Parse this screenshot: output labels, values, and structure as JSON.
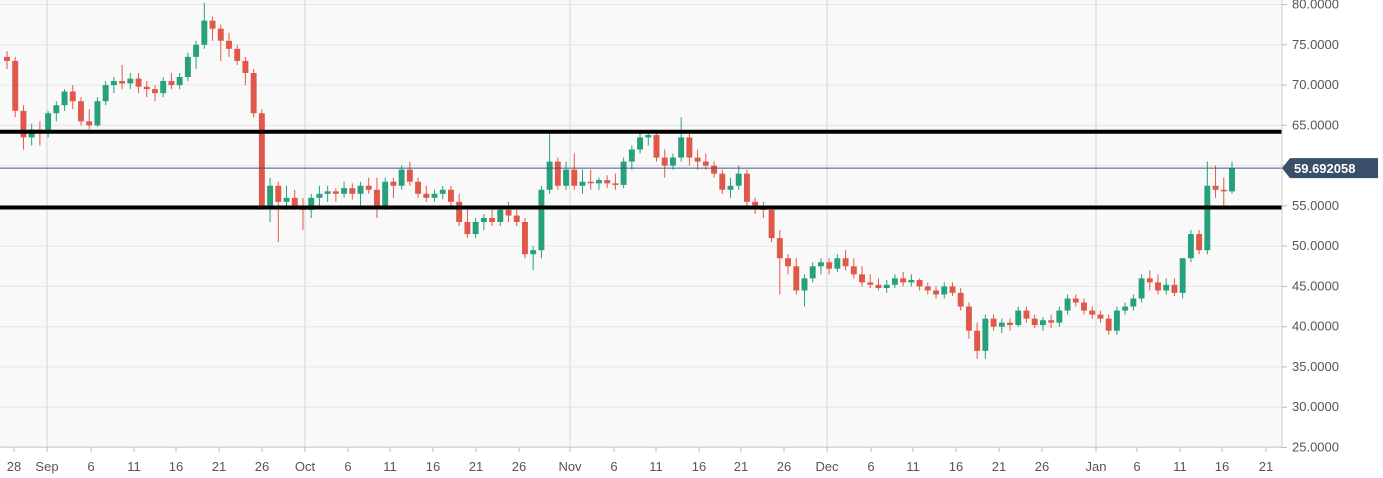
{
  "chart_data": {
    "type": "candlestick",
    "title": "",
    "xlabel": "",
    "ylabel": "",
    "ylim": [
      25,
      80.5
    ],
    "y_ticks": [
      "25.0000",
      "30.0000",
      "35.0000",
      "40.0000",
      "45.0000",
      "50.0000",
      "55.0000",
      "60.0000",
      "65.0000",
      "70.0000",
      "75.0000",
      "80.0000"
    ],
    "x_ticks": [
      "28",
      "Sep",
      "6",
      "11",
      "16",
      "21",
      "26",
      "Oct",
      "6",
      "11",
      "16",
      "21",
      "26",
      "Nov",
      "6",
      "11",
      "16",
      "21",
      "26",
      "Dec",
      "6",
      "11",
      "16",
      "21",
      "26",
      "Jan",
      "6",
      "11",
      "16",
      "21"
    ],
    "current_price": "59.692058",
    "current_value": 59.69,
    "horizontal_levels": [
      64.2,
      54.8
    ],
    "colors": {
      "up": "#26a17b",
      "down": "#e0584a",
      "level": "#000000",
      "price_line": "#3d5a80",
      "price_badge": "#3a4f6a",
      "grid": "#e6e6e6",
      "background": "#f9f9f9"
    },
    "candles": [
      [
        73.5,
        74.2,
        72.0,
        73.0
      ],
      [
        73.0,
        73.5,
        66.0,
        66.8
      ],
      [
        66.8,
        67.5,
        62.0,
        63.5
      ],
      [
        63.5,
        65.2,
        62.5,
        64.5
      ],
      [
        64.5,
        65.5,
        62.5,
        64.0
      ],
      [
        64.0,
        66.8,
        63.5,
        66.5
      ],
      [
        66.5,
        68.0,
        65.5,
        67.5
      ],
      [
        67.5,
        69.5,
        66.8,
        69.2
      ],
      [
        69.2,
        70.0,
        67.0,
        68.0
      ],
      [
        68.0,
        68.5,
        65.0,
        65.5
      ],
      [
        65.5,
        67.0,
        64.5,
        65.0
      ],
      [
        65.0,
        68.5,
        64.8,
        68.0
      ],
      [
        68.0,
        70.5,
        67.5,
        70.0
      ],
      [
        70.0,
        71.0,
        69.0,
        70.5
      ],
      [
        70.5,
        72.5,
        69.5,
        70.2
      ],
      [
        70.2,
        71.5,
        69.5,
        70.8
      ],
      [
        70.8,
        71.5,
        69.0,
        69.8
      ],
      [
        69.8,
        70.5,
        68.5,
        69.5
      ],
      [
        69.5,
        70.0,
        68.0,
        69.0
      ],
      [
        69.0,
        71.0,
        68.5,
        70.5
      ],
      [
        70.5,
        71.5,
        69.5,
        70.0
      ],
      [
        70.0,
        71.5,
        69.5,
        71.0
      ],
      [
        71.0,
        74.0,
        70.5,
        73.5
      ],
      [
        73.5,
        75.5,
        72.0,
        75.0
      ],
      [
        75.0,
        80.2,
        74.5,
        78.0
      ],
      [
        78.0,
        78.5,
        75.5,
        77.0
      ],
      [
        77.0,
        77.5,
        73.0,
        75.5
      ],
      [
        75.5,
        76.5,
        73.5,
        74.5
      ],
      [
        74.5,
        75.0,
        72.5,
        73.0
      ],
      [
        73.0,
        73.5,
        70.0,
        71.5
      ],
      [
        71.5,
        72.0,
        66.0,
        66.5
      ],
      [
        66.5,
        67.0,
        54.5,
        55.0
      ],
      [
        55.0,
        58.5,
        53.0,
        57.5
      ],
      [
        57.5,
        58.0,
        50.5,
        55.5
      ],
      [
        55.5,
        57.5,
        54.5,
        56.0
      ],
      [
        56.0,
        57.0,
        54.5,
        55.0
      ],
      [
        55.0,
        56.0,
        52.0,
        54.5
      ],
      [
        54.5,
        56.5,
        53.5,
        56.0
      ],
      [
        56.0,
        57.5,
        55.0,
        56.5
      ],
      [
        56.5,
        57.5,
        55.5,
        56.8
      ],
      [
        56.8,
        57.2,
        55.5,
        56.5
      ],
      [
        56.5,
        58.0,
        56.0,
        57.2
      ],
      [
        57.2,
        57.8,
        55.8,
        56.5
      ],
      [
        56.5,
        58.0,
        55.0,
        57.5
      ],
      [
        57.5,
        58.5,
        56.5,
        57.0
      ],
      [
        57.0,
        58.5,
        53.5,
        55.0
      ],
      [
        55.0,
        58.5,
        54.5,
        58.0
      ],
      [
        58.0,
        58.5,
        56.0,
        57.5
      ],
      [
        57.5,
        60.0,
        57.0,
        59.5
      ],
      [
        59.5,
        60.5,
        57.5,
        58.0
      ],
      [
        58.0,
        58.5,
        56.0,
        56.5
      ],
      [
        56.5,
        57.5,
        55.5,
        56.0
      ],
      [
        56.0,
        57.0,
        55.5,
        56.5
      ],
      [
        56.5,
        57.5,
        55.8,
        57.0
      ],
      [
        57.0,
        57.5,
        55.0,
        55.5
      ],
      [
        55.5,
        56.5,
        52.5,
        53.0
      ],
      [
        53.0,
        55.0,
        51.0,
        51.5
      ],
      [
        51.5,
        53.5,
        51.0,
        53.0
      ],
      [
        53.0,
        54.0,
        52.0,
        53.5
      ],
      [
        53.5,
        54.5,
        52.5,
        53.0
      ],
      [
        53.0,
        55.0,
        52.5,
        54.5
      ],
      [
        54.5,
        55.5,
        53.0,
        53.8
      ],
      [
        53.8,
        54.5,
        52.5,
        53.0
      ],
      [
        53.0,
        53.5,
        48.5,
        49.0
      ],
      [
        49.0,
        50.0,
        47.0,
        49.5
      ],
      [
        49.5,
        57.5,
        48.5,
        57.0
      ],
      [
        57.0,
        64.0,
        56.5,
        60.5
      ],
      [
        60.5,
        61.0,
        57.0,
        57.5
      ],
      [
        57.5,
        60.5,
        57.0,
        59.5
      ],
      [
        59.5,
        61.5,
        57.0,
        57.5
      ],
      [
        57.5,
        59.5,
        56.5,
        58.0
      ],
      [
        58.0,
        59.5,
        57.0,
        57.8
      ],
      [
        57.8,
        58.5,
        57.0,
        58.2
      ],
      [
        58.2,
        58.8,
        57.2,
        57.8
      ],
      [
        57.8,
        59.0,
        57.0,
        57.6
      ],
      [
        57.6,
        61.0,
        57.2,
        60.5
      ],
      [
        60.5,
        62.5,
        59.5,
        62.0
      ],
      [
        62.0,
        64.0,
        61.5,
        63.5
      ],
      [
        63.5,
        64.2,
        62.5,
        63.8
      ],
      [
        63.8,
        64.2,
        60.5,
        61.0
      ],
      [
        61.0,
        62.0,
        58.5,
        60.0
      ],
      [
        60.0,
        61.5,
        59.5,
        61.0
      ],
      [
        61.0,
        66.0,
        60.5,
        63.5
      ],
      [
        63.5,
        64.0,
        60.0,
        61.0
      ],
      [
        61.0,
        62.0,
        59.5,
        60.5
      ],
      [
        60.5,
        61.5,
        59.5,
        60.0
      ],
      [
        60.0,
        60.5,
        58.5,
        59.0
      ],
      [
        59.0,
        59.5,
        56.5,
        57.0
      ],
      [
        57.0,
        58.5,
        56.0,
        57.5
      ],
      [
        57.5,
        60.0,
        57.0,
        59.0
      ],
      [
        59.0,
        59.5,
        55.0,
        55.5
      ],
      [
        55.5,
        56.0,
        54.0,
        55.0
      ],
      [
        55.0,
        55.5,
        53.5,
        54.5
      ],
      [
        54.5,
        54.8,
        50.5,
        51.0
      ],
      [
        51.0,
        52.0,
        44.0,
        48.5
      ],
      [
        48.5,
        49.0,
        46.5,
        47.5
      ],
      [
        47.5,
        48.5,
        44.0,
        44.5
      ],
      [
        44.5,
        46.5,
        42.5,
        46.0
      ],
      [
        46.0,
        48.0,
        45.5,
        47.5
      ],
      [
        47.5,
        48.5,
        46.5,
        48.0
      ],
      [
        48.0,
        48.5,
        46.5,
        47.2
      ],
      [
        47.2,
        49.0,
        46.8,
        48.5
      ],
      [
        48.5,
        49.5,
        47.0,
        47.5
      ],
      [
        47.5,
        48.5,
        46.0,
        46.5
      ],
      [
        46.5,
        47.5,
        45.0,
        45.5
      ],
      [
        45.5,
        46.5,
        44.8,
        45.2
      ],
      [
        45.2,
        46.0,
        44.5,
        44.8
      ],
      [
        44.8,
        45.8,
        44.2,
        45.2
      ],
      [
        45.2,
        46.5,
        44.8,
        46.0
      ],
      [
        46.0,
        46.8,
        45.0,
        45.5
      ],
      [
        45.5,
        46.5,
        45.0,
        45.8
      ],
      [
        45.8,
        46.0,
        44.5,
        45.0
      ],
      [
        45.0,
        45.5,
        44.0,
        44.5
      ],
      [
        44.5,
        45.0,
        43.5,
        44.0
      ],
      [
        44.0,
        45.5,
        43.5,
        45.0
      ],
      [
        45.0,
        45.5,
        43.8,
        44.2
      ],
      [
        44.2,
        44.8,
        42.0,
        42.5
      ],
      [
        42.5,
        43.0,
        38.5,
        39.5
      ],
      [
        39.5,
        40.5,
        36.0,
        37.0
      ],
      [
        37.0,
        41.5,
        36.0,
        41.0
      ],
      [
        41.0,
        41.5,
        39.5,
        40.0
      ],
      [
        40.0,
        41.0,
        39.2,
        40.5
      ],
      [
        40.5,
        41.0,
        39.5,
        40.2
      ],
      [
        40.2,
        42.5,
        40.0,
        42.0
      ],
      [
        42.0,
        42.5,
        40.5,
        41.0
      ],
      [
        41.0,
        41.5,
        39.8,
        40.2
      ],
      [
        40.2,
        41.2,
        39.5,
        40.8
      ],
      [
        40.8,
        41.5,
        39.8,
        40.5
      ],
      [
        40.5,
        42.5,
        40.0,
        42.0
      ],
      [
        42.0,
        44.0,
        41.5,
        43.5
      ],
      [
        43.5,
        44.0,
        42.5,
        43.0
      ],
      [
        43.0,
        43.5,
        41.5,
        42.0
      ],
      [
        42.0,
        42.5,
        41.0,
        41.5
      ],
      [
        41.5,
        42.0,
        40.5,
        41.0
      ],
      [
        41.0,
        41.5,
        39.0,
        39.5
      ],
      [
        39.5,
        42.5,
        39.0,
        42.0
      ],
      [
        42.0,
        43.0,
        41.5,
        42.5
      ],
      [
        42.5,
        44.0,
        42.0,
        43.5
      ],
      [
        43.5,
        46.5,
        43.0,
        46.0
      ],
      [
        46.0,
        47.0,
        44.5,
        45.5
      ],
      [
        45.5,
        46.5,
        44.0,
        44.5
      ],
      [
        44.5,
        46.0,
        44.0,
        45.2
      ],
      [
        45.2,
        46.0,
        43.8,
        44.2
      ],
      [
        44.2,
        48.5,
        43.5,
        48.5
      ],
      [
        48.5,
        52.0,
        48.0,
        51.5
      ],
      [
        51.5,
        52.0,
        49.0,
        49.5
      ],
      [
        49.5,
        60.5,
        49.0,
        57.5
      ],
      [
        57.5,
        60.0,
        56.0,
        57.0
      ],
      [
        57.0,
        58.5,
        55.0,
        56.8
      ],
      [
        56.8,
        60.5,
        56.5,
        59.7
      ]
    ]
  }
}
